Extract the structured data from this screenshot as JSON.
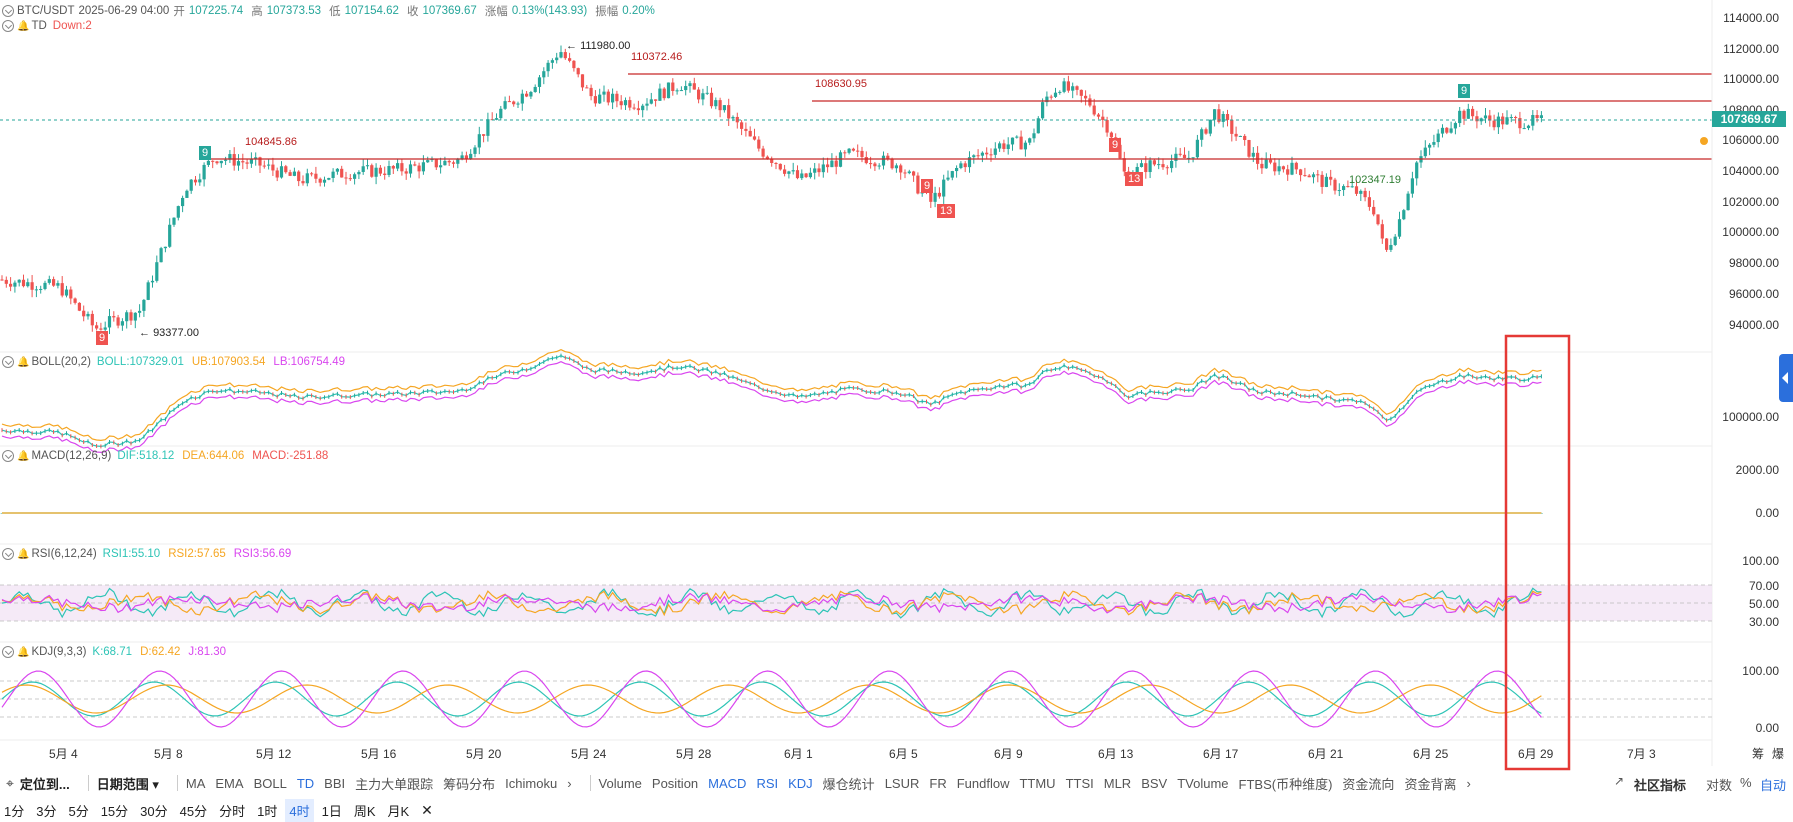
{
  "header": {
    "symbol": "BTC/USDT",
    "datetime": "2025-06-29 04:00",
    "open_label": "开",
    "open": "107225.74",
    "high_label": "高",
    "high": "107373.53",
    "low_label": "低",
    "low": "107154.62",
    "close_label": "收",
    "close": "107369.67",
    "change_label": "涨幅",
    "change": "0.13%(143.93)",
    "amp_label": "振幅",
    "amp": "0.20%"
  },
  "td_legend": {
    "name": "TD",
    "value": "Down:2"
  },
  "boll_legend": {
    "name": "BOLL(20,2)",
    "mid": "BOLL:107329.01",
    "ub": "UB:107903.54",
    "lb": "LB:106754.49"
  },
  "macd_legend": {
    "name": "MACD(12,26,9)",
    "dif": "DIF:518.12",
    "dea": "DEA:644.06",
    "macd": "MACD:-251.88"
  },
  "rsi_legend": {
    "name": "RSI(6,12,24)",
    "rsi1": "RSI1:55.10",
    "rsi2": "RSI2:57.65",
    "rsi3": "RSI3:56.69"
  },
  "kdj_legend": {
    "name": "KDJ(9,3,3)",
    "k": "K:68.71",
    "d": "D:62.42",
    "j": "J:81.30"
  },
  "price_axis": [
    "114000.00",
    "112000.00",
    "110000.00",
    "108000.00",
    "106000.00",
    "104000.00",
    "102000.00",
    "100000.00",
    "98000.00",
    "96000.00",
    "94000.00"
  ],
  "current_price_tag": "107369.67",
  "boll_axis": [
    "100000.00"
  ],
  "macd_axis": [
    "2000.00",
    "0.00"
  ],
  "rsi_axis": [
    "100.00",
    "70.00",
    "50.00",
    "30.00"
  ],
  "kdj_axis": [
    "100.00",
    "0.00"
  ],
  "date_axis": [
    "5月 4",
    "5月 8",
    "5月 12",
    "5月 16",
    "5月 20",
    "5月 24",
    "5月 28",
    "6月 1",
    "6月 5",
    "6月 9",
    "6月 13",
    "6月 17",
    "6月 21",
    "6月 25",
    "6月 29",
    "7月 3"
  ],
  "date_axis_right": [
    "筹",
    "爆"
  ],
  "annotations": {
    "high": "111980.00",
    "low": "93377.00",
    "level1": "110372.46",
    "level2": "108630.95",
    "level3": "104845.86",
    "level4": "102347.19"
  },
  "td_markers": [
    "9",
    "9",
    "9",
    "13",
    "9",
    "13",
    "9"
  ],
  "toolbar_top": {
    "locate": "定位到...",
    "date_range": "日期范围",
    "main_indicators": [
      "MA",
      "EMA",
      "BOLL",
      "TD",
      "BBI",
      "主力大单跟踪",
      "筹码分布",
      "Ichimoku"
    ],
    "sub_indicators": [
      "Volume",
      "Position",
      "MACD",
      "RSI",
      "KDJ",
      "爆仓统计",
      "LSUR",
      "FR",
      "Fundflow",
      "TTMU",
      "TTSI",
      "MLR",
      "BSV",
      "TVolume",
      "FTBS(币种维度)",
      "资金流向",
      "资金背离"
    ],
    "right": [
      "社区指标",
      "对数",
      "%",
      "自动"
    ]
  },
  "toolbar_bottom": {
    "timeframes": [
      "1分",
      "3分",
      "5分",
      "15分",
      "30分",
      "45分",
      "分时",
      "1时",
      "4时",
      "1日",
      "周K",
      "月K"
    ],
    "active": "4时"
  },
  "colors": {
    "up": "#26a69a",
    "down": "#ef5350",
    "boll_mid": "#2ec4b6",
    "boll_ub": "#f5a623",
    "boll_lb": "#d946ef",
    "macd_dif": "#2ec4b6",
    "macd_dea": "#f5a623",
    "accent": "#2b6fdc",
    "highlight_box": "#e53935"
  }
}
